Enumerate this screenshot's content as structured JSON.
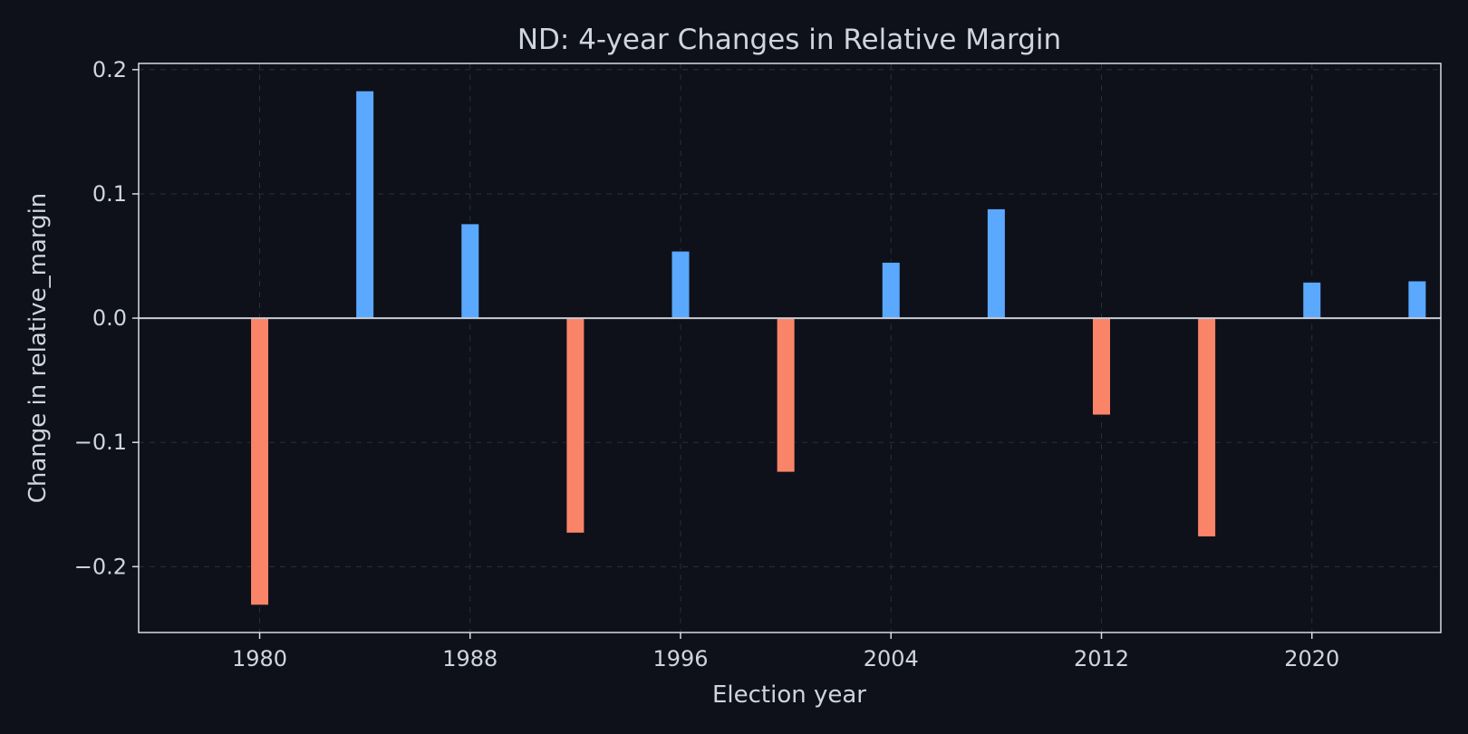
{
  "chart_data": {
    "type": "bar",
    "title": "ND: 4-year Changes in Relative Margin",
    "xlabel": "Election year",
    "ylabel": "Change in relative_margin",
    "x": [
      1980,
      1984,
      1988,
      1992,
      1996,
      2000,
      2004,
      2008,
      2012,
      2016,
      2020,
      2024
    ],
    "values": [
      -0.231,
      0.183,
      0.076,
      -0.173,
      0.054,
      -0.124,
      0.045,
      0.088,
      -0.078,
      -0.176,
      0.029,
      0.03
    ],
    "xlim": [
      1975.4,
      2024.9
    ],
    "ylim": [
      -0.253,
      0.205
    ],
    "x_ticks": [
      1980,
      1988,
      1996,
      2004,
      2012,
      2020
    ],
    "x_tick_labels": [
      "1980",
      "1988",
      "1996",
      "2004",
      "2012",
      "2020"
    ],
    "y_ticks": [
      -0.2,
      -0.1,
      0.0,
      0.1,
      0.2
    ],
    "y_tick_labels": [
      "−0.2",
      "−0.1",
      "0.0",
      "0.1",
      "0.2"
    ],
    "grid": true,
    "colors": {
      "positive": "#5ba8ff",
      "negative": "#fa8468",
      "background": "#0e111a"
    }
  }
}
